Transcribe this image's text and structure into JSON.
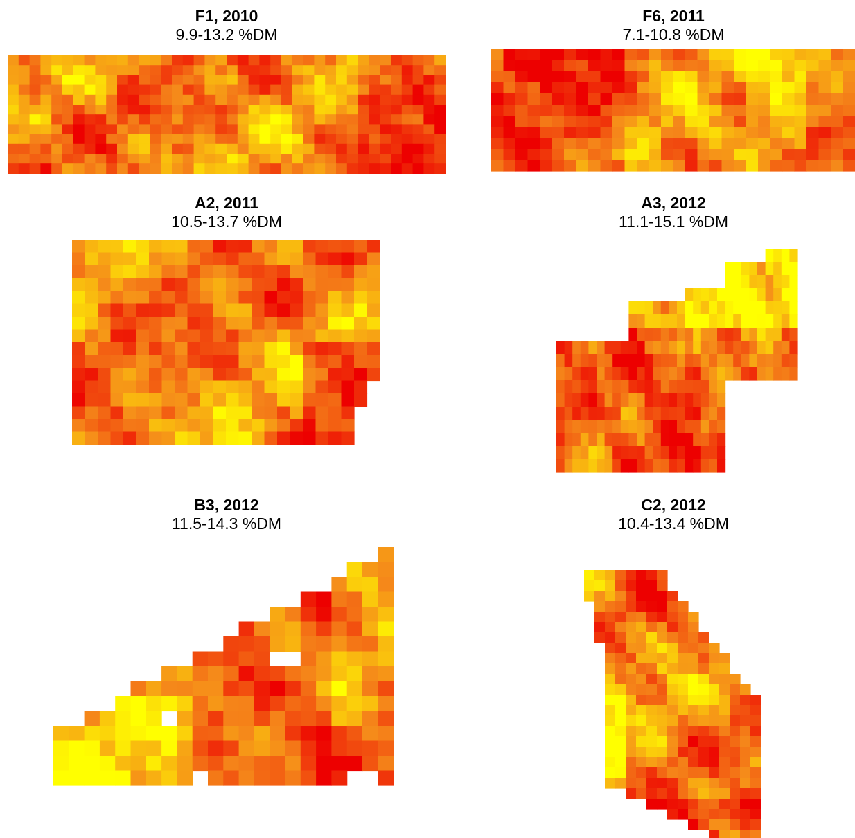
{
  "color_scale": {
    "low": "#ed0000",
    "mid": "#f5891a",
    "high": "#ffff00"
  },
  "panels": [
    {
      "id": "F1",
      "title": "F1, 2010",
      "range": "9.9-13.2 %DM"
    },
    {
      "id": "F6",
      "title": "F6, 2011",
      "range": "7.1-10.8 %DM"
    },
    {
      "id": "A2",
      "title": "A2, 2011",
      "range": "10.5-13.7 %DM"
    },
    {
      "id": "A3",
      "title": "A3, 2012",
      "range": "11.1-15.1 %DM"
    },
    {
      "id": "B3",
      "title": "B3, 2012",
      "range": "11.5-14.3 %DM"
    },
    {
      "id": "C2",
      "title": "C2, 2012",
      "range": "10.4-13.4 %DM"
    }
  ]
}
